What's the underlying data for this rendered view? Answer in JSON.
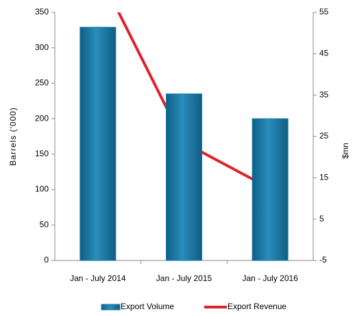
{
  "chart_data": {
    "type": "bar",
    "categories": [
      "Jan - July 2014",
      "Jan - July 2015",
      "Jan - July 2016"
    ],
    "series": [
      {
        "name": "Export Volume",
        "type": "bar",
        "color": "#1a7aa6",
        "values": [
          329,
          235,
          200
        ]
      },
      {
        "name": "Export Revenue",
        "type": "line",
        "axis": "y2",
        "color": "#e0202a",
        "values": [
          65,
          23.5,
          12.4
        ]
      }
    ],
    "ylabel": "Barrels ('000)",
    "y2label": "$mn",
    "ylim": [
      0,
      350
    ],
    "yticks": [
      0,
      50,
      100,
      150,
      200,
      250,
      300,
      350
    ],
    "y2lim": [
      -5,
      55
    ],
    "y2ticks": [
      -5,
      5,
      15,
      25,
      35,
      45,
      55
    ],
    "legend": "bottom"
  }
}
